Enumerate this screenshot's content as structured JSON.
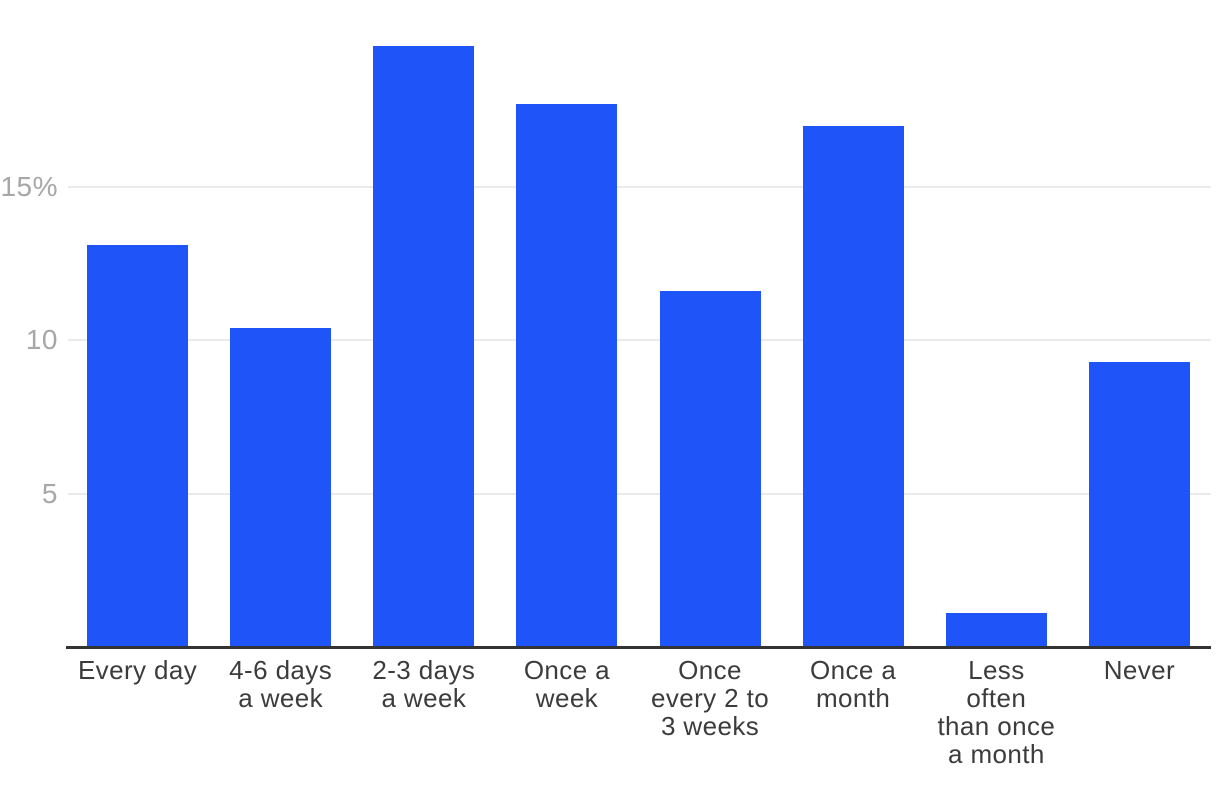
{
  "chart_data": {
    "type": "bar",
    "title": "",
    "xlabel": "",
    "ylabel": "",
    "categories": [
      "Every day",
      "4-6 days a week",
      "2-3 days a week",
      "Once a week",
      "Once every 2 to 3 weeks",
      "Once a month",
      "Less often than once a month",
      "Never"
    ],
    "category_lines": [
      [
        "Every day"
      ],
      [
        "4-6 days",
        "a week"
      ],
      [
        "2-3 days",
        "a week"
      ],
      [
        "Once a",
        "week"
      ],
      [
        "Once",
        "every 2 to",
        "3 weeks"
      ],
      [
        "Once a",
        "month"
      ],
      [
        "Less",
        "often",
        "than once",
        "a month"
      ],
      [
        "Never"
      ]
    ],
    "values": [
      13.1,
      10.4,
      19.6,
      17.7,
      11.6,
      17.0,
      1.1,
      9.3
    ],
    "unit": "percent",
    "ylim": [
      0,
      21.1
    ],
    "yticks": [
      {
        "value": 5,
        "label": "5"
      },
      {
        "value": 10,
        "label": "10"
      },
      {
        "value": 15,
        "label": "15%"
      }
    ],
    "grid": true,
    "legend": null,
    "colors": {
      "bar": "#1f55f8",
      "gridline": "#ebebeb",
      "axis_line": "#333333",
      "y_tick_label": "#a7a7a7",
      "x_tick_label": "#3c3c3c",
      "background": "#ffffff"
    }
  }
}
